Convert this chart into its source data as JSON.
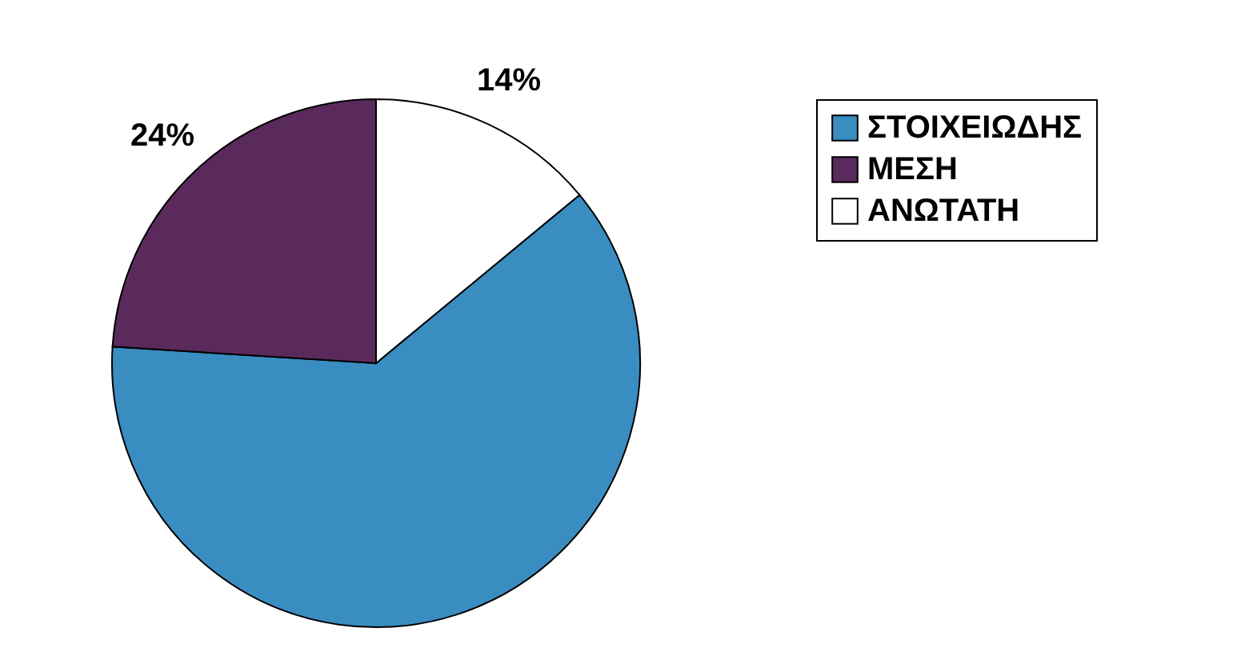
{
  "chart_data": {
    "type": "pie",
    "categories": [
      "ΣΤΟΙΧΕΙΩΔΗΣ",
      "ΜΕΣΗ",
      "ΑΝΩΤΑΤΗ"
    ],
    "values": [
      62,
      24,
      14
    ],
    "colors": [
      "#3a8dc0",
      "#5a2a5c",
      "#ffffff"
    ],
    "value_labels": [
      null,
      "24%",
      "14%"
    ],
    "legend": "right"
  }
}
